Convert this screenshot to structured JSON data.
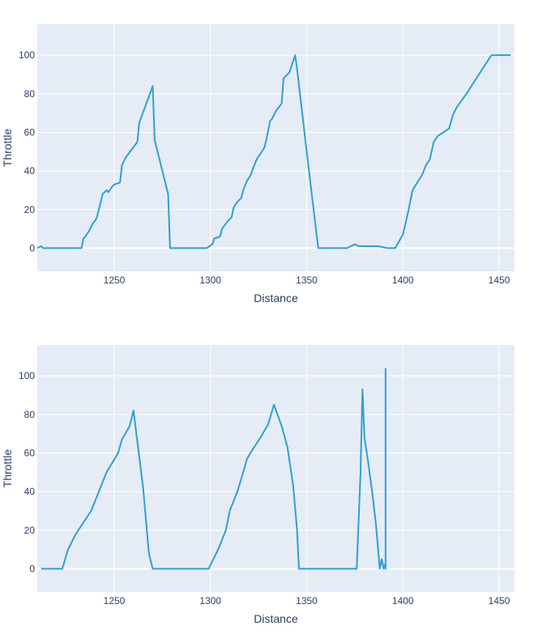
{
  "chart_data": [
    {
      "type": "line",
      "xlabel": "Distance",
      "ylabel": "Throttle",
      "xlim": [
        1210,
        1458
      ],
      "ylim": [
        -12,
        116
      ],
      "xticks": [
        1250,
        1300,
        1350,
        1400,
        1450
      ],
      "yticks": [
        0,
        20,
        40,
        60,
        80,
        100
      ],
      "grid": true,
      "color": "#2ca0d6",
      "plot_bg": "#e5ecf6",
      "series": [
        {
          "x": [
            1210,
            1212,
            1213,
            1220,
            1233,
            1234,
            1235,
            1237,
            1239,
            1240,
            1241,
            1244,
            1246,
            1247,
            1249,
            1250,
            1253,
            1254,
            1256,
            1262,
            1263,
            1270,
            1271,
            1278,
            1279,
            1284,
            1298,
            1301,
            1302,
            1305,
            1306,
            1309,
            1311,
            1312,
            1314,
            1316,
            1317,
            1319,
            1321,
            1322,
            1324,
            1326,
            1328,
            1329,
            1331,
            1332,
            1334,
            1337,
            1338,
            1341,
            1344,
            1345,
            1350,
            1356,
            1360,
            1367,
            1371,
            1373,
            1375,
            1377,
            1380,
            1387,
            1392,
            1396,
            1400,
            1403,
            1405,
            1410,
            1412,
            1414,
            1416,
            1418,
            1424,
            1426,
            1428,
            1433,
            1446,
            1456
          ],
          "y": [
            0,
            1,
            0,
            0,
            0,
            5,
            6,
            9,
            13,
            14,
            16,
            28,
            30,
            29,
            32,
            33,
            34,
            43,
            47,
            55,
            65,
            84,
            56,
            28,
            0,
            0,
            0,
            2,
            5,
            6,
            10,
            14,
            16,
            21,
            24,
            26,
            30,
            35,
            38,
            41,
            46,
            49,
            52,
            56,
            66,
            67,
            71,
            75,
            88,
            91,
            100,
            93,
            50,
            0,
            0,
            0,
            0,
            1,
            2,
            1,
            1,
            1,
            0,
            0,
            7,
            20,
            30,
            38,
            43,
            46,
            55,
            58,
            62,
            69,
            73,
            80,
            100,
            100
          ]
        }
      ]
    },
    {
      "type": "line",
      "xlabel": "Distance",
      "ylabel": "Throttle",
      "xlim": [
        1210,
        1458
      ],
      "ylim": [
        -12,
        116
      ],
      "xticks": [
        1250,
        1300,
        1350,
        1400,
        1450
      ],
      "yticks": [
        0,
        20,
        40,
        60,
        80,
        100
      ],
      "grid": true,
      "color": "#2ca0d6",
      "plot_bg": "#e5ecf6",
      "series": [
        {
          "x": [
            1212,
            1223,
            1226,
            1228,
            1230,
            1232,
            1234,
            1236,
            1238,
            1240,
            1242,
            1246,
            1249,
            1252,
            1254,
            1258,
            1260,
            1265,
            1268,
            1270,
            1299,
            1304,
            1308,
            1310,
            1314,
            1317,
            1319,
            1322,
            1326,
            1330,
            1333,
            1337,
            1340,
            1343,
            1345,
            1346,
            1376,
            1378,
            1379,
            1380,
            1382,
            1384,
            1386,
            1388,
            1389,
            1390,
            1391,
            1391,
            1391,
            1391
          ],
          "y": [
            0,
            0,
            10,
            14,
            18,
            21,
            24,
            27,
            30,
            35,
            40,
            50,
            55,
            60,
            67,
            74,
            82,
            42,
            8,
            0,
            0,
            10,
            20,
            30,
            40,
            50,
            57,
            62,
            68,
            75,
            85,
            74,
            63,
            43,
            20,
            0,
            0,
            50,
            93,
            68,
            55,
            40,
            23,
            0,
            5,
            0,
            3,
            0,
            0,
            104
          ]
        }
      ]
    }
  ]
}
